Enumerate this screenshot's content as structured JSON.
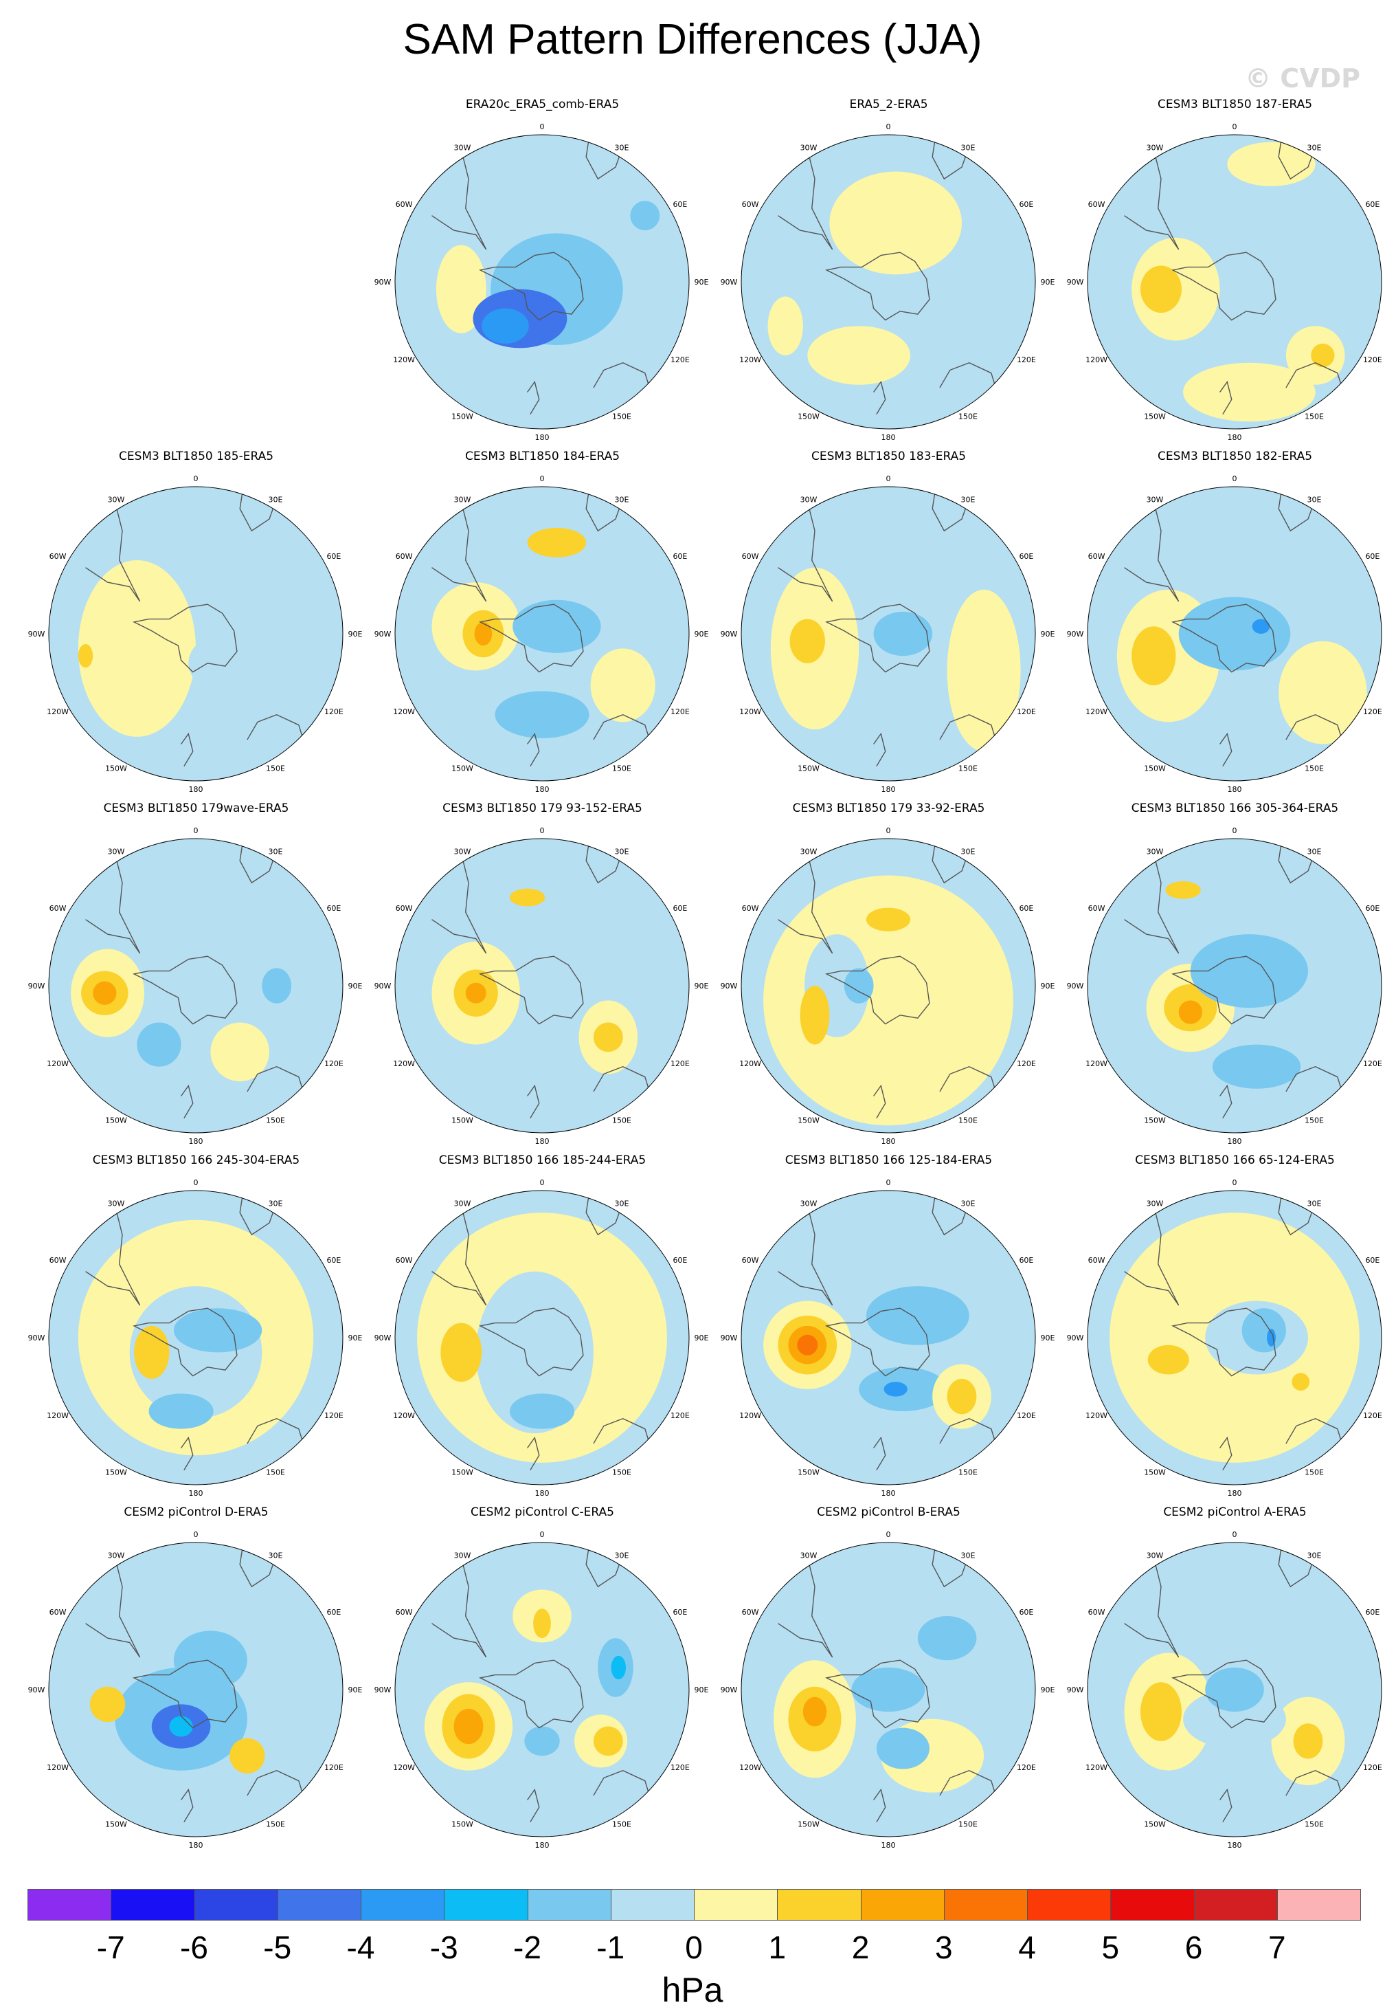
{
  "title": "SAM Pattern Differences (JJA)",
  "credit": "© CVDP",
  "units": "hPa",
  "longitude_labels": [
    "0",
    "30E",
    "60E",
    "90E",
    "120E",
    "150E",
    "180",
    "150W",
    "120W",
    "90W",
    "60W",
    "30W"
  ],
  "colorbar": {
    "colors": [
      "#8b2cf0",
      "#1a10f5",
      "#2c46e6",
      "#3f74ea",
      "#2b9af5",
      "#0cbcf5",
      "#78c8ef",
      "#b6dff2",
      "#fdf6a4",
      "#fbd12c",
      "#faa606",
      "#fa7405",
      "#fb3a07",
      "#e80b0b",
      "#d31f22",
      "#fcb3b6"
    ],
    "labels": [
      "-7",
      "-6",
      "-5",
      "-4",
      "-3",
      "-2",
      "-1",
      "0",
      "1",
      "2",
      "3",
      "4",
      "5",
      "6",
      "7"
    ]
  },
  "panels": [
    {
      "title": "ERA20c_ERA5_comb-ERA5",
      "blobs": [
        [
          -0.55,
          0.05,
          0.17,
          0.3,
          "#fdf6a4"
        ],
        [
          0.1,
          0.05,
          0.45,
          0.38,
          "#78c8ef"
        ],
        [
          -0.15,
          0.25,
          0.32,
          0.2,
          "#3f74ea"
        ],
        [
          -0.25,
          0.3,
          0.16,
          0.12,
          "#2b9af5"
        ],
        [
          0.7,
          -0.45,
          0.1,
          0.1,
          "#78c8ef"
        ]
      ]
    },
    {
      "title": "ERA5_2-ERA5",
      "blobs": [
        [
          0.05,
          -0.4,
          0.45,
          0.35,
          "#fdf6a4"
        ],
        [
          -0.2,
          0.5,
          0.35,
          0.2,
          "#fdf6a4"
        ],
        [
          -0.7,
          0.3,
          0.12,
          0.2,
          "#fdf6a4"
        ]
      ]
    },
    {
      "title": "CESM3 BLT1850 187-ERA5",
      "blobs": [
        [
          -0.4,
          0.05,
          0.3,
          0.35,
          "#fdf6a4"
        ],
        [
          -0.5,
          0.05,
          0.14,
          0.16,
          "#fbd12c"
        ],
        [
          0.55,
          0.5,
          0.2,
          0.2,
          "#fdf6a4"
        ],
        [
          0.6,
          0.5,
          0.08,
          0.08,
          "#fbd12c"
        ],
        [
          0.1,
          0.75,
          0.45,
          0.2,
          "#fdf6a4"
        ],
        [
          0.25,
          -0.8,
          0.3,
          0.15,
          "#fdf6a4"
        ]
      ]
    },
    {
      "title": "CESM3 BLT1850 185-ERA5",
      "blobs": [
        [
          -0.4,
          0.1,
          0.4,
          0.6,
          "#fdf6a4"
        ],
        [
          0.8,
          -0.35,
          0.2,
          0.2,
          "#b6dff2"
        ],
        [
          0.2,
          0.2,
          0.25,
          0.2,
          "#b6dff2"
        ],
        [
          -0.75,
          0.15,
          0.05,
          0.08,
          "#fbd12c"
        ]
      ]
    },
    {
      "title": "CESM3 BLT1850 184-ERA5",
      "blobs": [
        [
          -0.45,
          -0.05,
          0.3,
          0.3,
          "#fdf6a4"
        ],
        [
          -0.4,
          0.0,
          0.14,
          0.16,
          "#fbd12c"
        ],
        [
          -0.4,
          0.0,
          0.06,
          0.08,
          "#faa606"
        ],
        [
          0.1,
          -0.62,
          0.2,
          0.1,
          "#fbd12c"
        ],
        [
          0.55,
          0.35,
          0.22,
          0.25,
          "#fdf6a4"
        ],
        [
          0.0,
          0.55,
          0.32,
          0.16,
          "#78c8ef"
        ],
        [
          0.1,
          -0.05,
          0.3,
          0.18,
          "#78c8ef"
        ]
      ]
    },
    {
      "title": "CESM3 BLT1850 183-ERA5",
      "blobs": [
        [
          -0.5,
          0.1,
          0.3,
          0.55,
          "#fdf6a4"
        ],
        [
          -0.55,
          0.05,
          0.12,
          0.15,
          "#fbd12c"
        ],
        [
          0.65,
          0.25,
          0.25,
          0.55,
          "#fdf6a4"
        ],
        [
          0.1,
          0.0,
          0.2,
          0.15,
          "#78c8ef"
        ]
      ]
    },
    {
      "title": "CESM3 BLT1850 182-ERA5",
      "blobs": [
        [
          -0.45,
          0.15,
          0.35,
          0.45,
          "#fdf6a4"
        ],
        [
          -0.55,
          0.15,
          0.15,
          0.2,
          "#fbd12c"
        ],
        [
          0.0,
          0.0,
          0.38,
          0.25,
          "#78c8ef"
        ],
        [
          0.18,
          -0.05,
          0.06,
          0.05,
          "#2b9af5"
        ],
        [
          0.6,
          0.4,
          0.3,
          0.35,
          "#fdf6a4"
        ]
      ]
    },
    {
      "title": "CESM3 BLT1850 179wave-ERA5",
      "blobs": [
        [
          -0.6,
          0.05,
          0.25,
          0.3,
          "#fdf6a4"
        ],
        [
          -0.62,
          0.05,
          0.16,
          0.15,
          "#fbd12c"
        ],
        [
          -0.62,
          0.05,
          0.08,
          0.08,
          "#faa606"
        ],
        [
          0.3,
          0.45,
          0.2,
          0.2,
          "#fdf6a4"
        ],
        [
          -0.25,
          0.4,
          0.15,
          0.15,
          "#78c8ef"
        ],
        [
          0.55,
          0.0,
          0.1,
          0.12,
          "#78c8ef"
        ]
      ]
    },
    {
      "title": "CESM3 BLT1850 179 93-152-ERA5",
      "blobs": [
        [
          -0.45,
          0.05,
          0.3,
          0.35,
          "#fdf6a4"
        ],
        [
          -0.45,
          0.05,
          0.15,
          0.16,
          "#fbd12c"
        ],
        [
          -0.45,
          0.05,
          0.07,
          0.07,
          "#faa606"
        ],
        [
          0.45,
          0.35,
          0.2,
          0.25,
          "#fdf6a4"
        ],
        [
          0.45,
          0.35,
          0.1,
          0.1,
          "#fbd12c"
        ],
        [
          -0.1,
          -0.6,
          0.12,
          0.06,
          "#fbd12c"
        ]
      ]
    },
    {
      "title": "CESM3 BLT1850 179 33-92-ERA5",
      "blobs": [
        [
          0.0,
          0.1,
          0.85,
          0.85,
          "#fdf6a4"
        ],
        [
          -0.35,
          0.0,
          0.22,
          0.35,
          "#b6dff2"
        ],
        [
          -0.2,
          0.0,
          0.1,
          0.12,
          "#78c8ef"
        ],
        [
          -0.5,
          0.2,
          0.1,
          0.2,
          "#fbd12c"
        ],
        [
          0.0,
          -0.45,
          0.15,
          0.08,
          "#fbd12c"
        ]
      ]
    },
    {
      "title": "CESM3 BLT1850 166 305-364-ERA5",
      "blobs": [
        [
          -0.3,
          0.15,
          0.3,
          0.3,
          "#fdf6a4"
        ],
        [
          -0.3,
          0.15,
          0.18,
          0.16,
          "#fbd12c"
        ],
        [
          -0.3,
          0.18,
          0.08,
          0.08,
          "#faa606"
        ],
        [
          0.1,
          -0.1,
          0.4,
          0.25,
          "#78c8ef"
        ],
        [
          0.15,
          0.55,
          0.3,
          0.15,
          "#78c8ef"
        ],
        [
          -0.35,
          -0.65,
          0.12,
          0.06,
          "#fbd12c"
        ]
      ]
    },
    {
      "title": "CESM3 BLT1850 166 245-304-ERA5",
      "blobs": [
        [
          0.0,
          0.0,
          0.8,
          0.8,
          "#fdf6a4"
        ],
        [
          0.0,
          0.1,
          0.45,
          0.45,
          "#b6dff2"
        ],
        [
          -0.3,
          0.1,
          0.12,
          0.18,
          "#fbd12c"
        ],
        [
          -0.1,
          0.5,
          0.22,
          0.12,
          "#78c8ef"
        ],
        [
          0.15,
          -0.05,
          0.3,
          0.15,
          "#78c8ef"
        ]
      ]
    },
    {
      "title": "CESM3 BLT1850 166 185-244-ERA5",
      "blobs": [
        [
          0.0,
          0.0,
          0.85,
          0.85,
          "#fdf6a4"
        ],
        [
          -0.05,
          0.1,
          0.4,
          0.55,
          "#b6dff2"
        ],
        [
          -0.55,
          0.1,
          0.14,
          0.2,
          "#fbd12c"
        ],
        [
          0.0,
          0.5,
          0.22,
          0.12,
          "#78c8ef"
        ]
      ]
    },
    {
      "title": "CESM3 BLT1850 166 125-184-ERA5",
      "blobs": [
        [
          -0.55,
          0.05,
          0.3,
          0.3,
          "#fdf6a4"
        ],
        [
          -0.55,
          0.05,
          0.2,
          0.2,
          "#fbd12c"
        ],
        [
          -0.55,
          0.05,
          0.13,
          0.13,
          "#faa606"
        ],
        [
          -0.55,
          0.05,
          0.07,
          0.07,
          "#fa7405"
        ],
        [
          0.1,
          0.35,
          0.3,
          0.15,
          "#78c8ef"
        ],
        [
          0.05,
          0.35,
          0.08,
          0.05,
          "#2b9af5"
        ],
        [
          0.5,
          0.4,
          0.2,
          0.22,
          "#fdf6a4"
        ],
        [
          0.5,
          0.4,
          0.1,
          0.12,
          "#fbd12c"
        ],
        [
          0.2,
          -0.15,
          0.35,
          0.2,
          "#78c8ef"
        ]
      ]
    },
    {
      "title": "CESM3 BLT1850 166 65-124-ERA5",
      "blobs": [
        [
          0.0,
          0.0,
          0.85,
          0.85,
          "#fdf6a4"
        ],
        [
          0.15,
          0.0,
          0.35,
          0.25,
          "#b6dff2"
        ],
        [
          0.2,
          -0.05,
          0.15,
          0.15,
          "#78c8ef"
        ],
        [
          0.25,
          0.0,
          0.03,
          0.06,
          "#2b9af5"
        ],
        [
          -0.45,
          0.15,
          0.14,
          0.1,
          "#fbd12c"
        ],
        [
          0.45,
          0.3,
          0.06,
          0.06,
          "#fbd12c"
        ]
      ]
    },
    {
      "title": "CESM2 piControl D-ERA5",
      "blobs": [
        [
          -0.1,
          0.2,
          0.45,
          0.35,
          "#78c8ef"
        ],
        [
          -0.1,
          0.25,
          0.2,
          0.15,
          "#3f74ea"
        ],
        [
          -0.1,
          0.25,
          0.08,
          0.07,
          "#0cbcf5"
        ],
        [
          0.1,
          -0.2,
          0.25,
          0.2,
          "#78c8ef"
        ],
        [
          -0.6,
          0.1,
          0.12,
          0.12,
          "#fbd12c"
        ],
        [
          0.35,
          0.45,
          0.12,
          0.12,
          "#fbd12c"
        ]
      ]
    },
    {
      "title": "CESM2 piControl C-ERA5",
      "blobs": [
        [
          -0.5,
          0.25,
          0.3,
          0.3,
          "#fdf6a4"
        ],
        [
          -0.5,
          0.25,
          0.18,
          0.22,
          "#fbd12c"
        ],
        [
          -0.5,
          0.25,
          0.1,
          0.12,
          "#faa606"
        ],
        [
          0.4,
          0.35,
          0.18,
          0.18,
          "#fdf6a4"
        ],
        [
          0.45,
          0.35,
          0.1,
          0.1,
          "#fbd12c"
        ],
        [
          0.5,
          -0.15,
          0.12,
          0.2,
          "#78c8ef"
        ],
        [
          0.52,
          -0.15,
          0.05,
          0.08,
          "#0cbcf5"
        ],
        [
          0.0,
          -0.5,
          0.2,
          0.18,
          "#fdf6a4"
        ],
        [
          0.0,
          -0.45,
          0.06,
          0.1,
          "#fbd12c"
        ],
        [
          0.0,
          0.35,
          0.12,
          0.1,
          "#78c8ef"
        ]
      ]
    },
    {
      "title": "CESM2 piControl B-ERA5",
      "blobs": [
        [
          -0.5,
          0.2,
          0.28,
          0.4,
          "#fdf6a4"
        ],
        [
          -0.5,
          0.2,
          0.18,
          0.22,
          "#fbd12c"
        ],
        [
          -0.5,
          0.15,
          0.08,
          0.1,
          "#faa606"
        ],
        [
          0.3,
          0.45,
          0.35,
          0.25,
          "#fdf6a4"
        ],
        [
          0.1,
          0.4,
          0.18,
          0.14,
          "#78c8ef"
        ],
        [
          0.4,
          -0.35,
          0.2,
          0.15,
          "#78c8ef"
        ],
        [
          0.0,
          0.0,
          0.25,
          0.15,
          "#78c8ef"
        ]
      ]
    },
    {
      "title": "CESM2 piControl A-ERA5",
      "blobs": [
        [
          -0.45,
          0.15,
          0.3,
          0.4,
          "#fdf6a4"
        ],
        [
          -0.5,
          0.15,
          0.14,
          0.2,
          "#fbd12c"
        ],
        [
          0.5,
          0.35,
          0.25,
          0.3,
          "#fdf6a4"
        ],
        [
          0.5,
          0.35,
          0.1,
          0.12,
          "#fbd12c"
        ],
        [
          0.0,
          0.2,
          0.35,
          0.2,
          "#b6dff2"
        ],
        [
          0.0,
          0.0,
          0.2,
          0.15,
          "#78c8ef"
        ]
      ]
    }
  ]
}
